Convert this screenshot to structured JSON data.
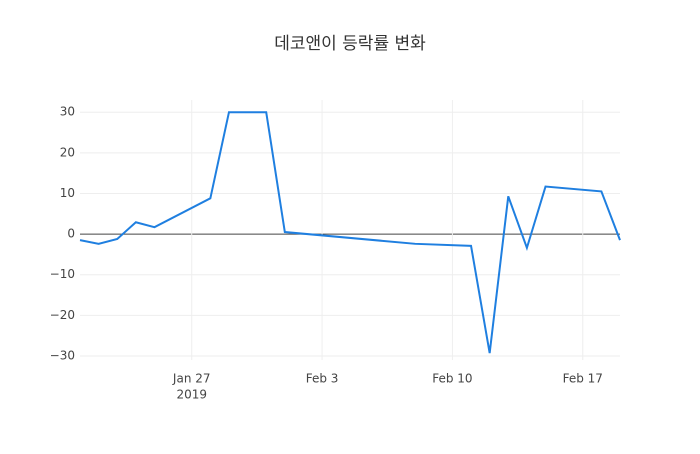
{
  "chart_data": {
    "type": "line",
    "title": "데코앤이 등락률 변화",
    "x": [
      "2019-01-21",
      "2019-01-22",
      "2019-01-23",
      "2019-01-24",
      "2019-01-25",
      "2019-01-28",
      "2019-01-29",
      "2019-01-31",
      "2019-02-01",
      "2019-02-08",
      "2019-02-11",
      "2019-02-12",
      "2019-02-13",
      "2019-02-14",
      "2019-02-15",
      "2019-02-18",
      "2019-02-19"
    ],
    "values": [
      -1.5,
      -2.4,
      -1.2,
      2.9,
      1.7,
      8.8,
      30,
      30,
      0.5,
      -2.4,
      -2.9,
      -29.3,
      9.3,
      -3.4,
      11.7,
      10.5,
      -1.5
    ],
    "color": "#1f7fe0",
    "xlim": [
      "2019-01-21",
      "2019-02-19"
    ],
    "xticks": [
      {
        "value": "2019-01-27",
        "label": "Jan 27",
        "year": "2019"
      },
      {
        "value": "2019-02-03",
        "label": "Feb 3"
      },
      {
        "value": "2019-02-10",
        "label": "Feb 10"
      },
      {
        "value": "2019-02-17",
        "label": "Feb 17"
      }
    ],
    "ylim": [
      -31,
      33
    ],
    "yticks": [
      {
        "value": -30,
        "label": "−30"
      },
      {
        "value": -20,
        "label": "−20"
      },
      {
        "value": -10,
        "label": "−10"
      },
      0,
      10,
      20,
      30
    ],
    "grid": true
  }
}
